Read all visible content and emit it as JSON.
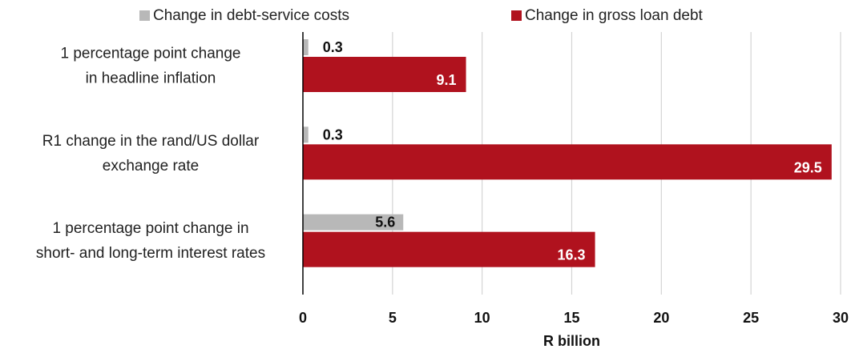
{
  "chart_data": {
    "type": "bar",
    "orientation": "horizontal",
    "title": "",
    "xlabel": "R billion",
    "ylabel": "",
    "xlim": [
      0,
      30
    ],
    "x_ticks": [
      "0",
      "5",
      "10",
      "15",
      "20",
      "25",
      "30"
    ],
    "grid": "vertical",
    "legend_position": "top",
    "categories": [
      [
        "1 percentage point change",
        "in headline inflation"
      ],
      [
        "R1 change in the rand/US dollar",
        "exchange rate"
      ],
      [
        "1 percentage point change in",
        "short- and long-term interest rates"
      ]
    ],
    "series": [
      {
        "name": "Change in debt-service costs",
        "values": [
          0.3,
          0.3,
          5.6
        ],
        "labels": [
          "0.3",
          "0.3",
          "5.6"
        ],
        "color": "#b8b8b8",
        "label_color": "#111111"
      },
      {
        "name": "Change in gross loan debt",
        "values": [
          9.1,
          29.5,
          16.3
        ],
        "labels": [
          "9.1",
          "29.5",
          "16.3"
        ],
        "color": "#b0121e",
        "label_color": "#ffffff"
      }
    ],
    "gridline_color": "#d4d4d4"
  }
}
